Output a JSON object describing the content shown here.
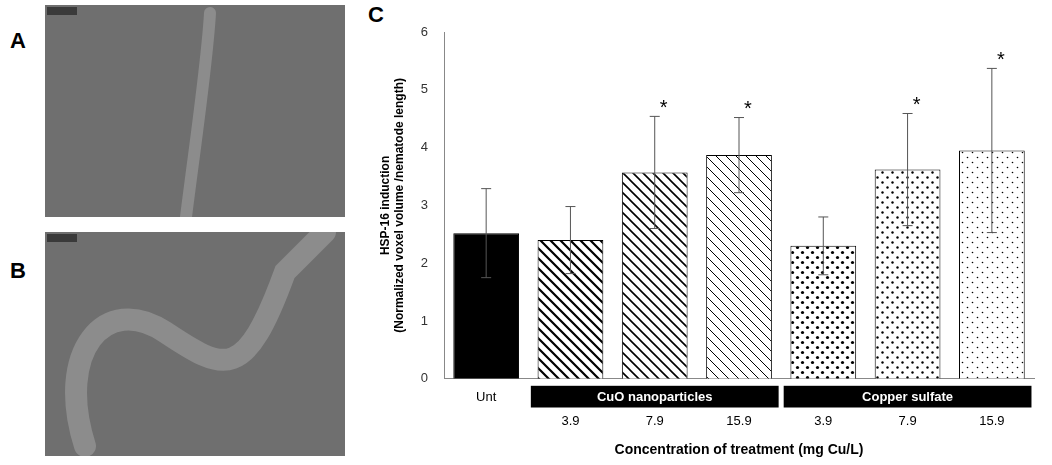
{
  "panels": [
    {
      "letter": "A"
    },
    {
      "letter": "B"
    }
  ],
  "chart_data": {
    "letter": "C",
    "type": "bar",
    "categories": [
      "Unt",
      "3.9",
      "7.9",
      "15.9",
      "3.9",
      "7.9",
      "15.9"
    ],
    "groups": [
      null,
      "CuO nanoparticles",
      "CuO nanoparticles",
      "CuO nanoparticles",
      "Copper sulfate",
      "Copper sulfate",
      "Copper sulfate"
    ],
    "values": [
      2.52,
      2.4,
      3.57,
      3.87,
      2.3,
      3.62,
      3.95
    ],
    "errors": [
      0.77,
      0.58,
      0.97,
      0.65,
      0.5,
      0.97,
      1.42
    ],
    "significance": [
      null,
      null,
      "*",
      "*",
      null,
      "*",
      "*"
    ],
    "colors": [
      "#000000",
      "#000000",
      "#000000",
      "#000000",
      "#000000",
      "#000000",
      "#000000"
    ],
    "x_label": "Concentration of treatment (mg Cu/L)",
    "y_label": "HSP-16 induction (Normalized voxel volume /nematode length)",
    "ylim": [
      0,
      6
    ],
    "yticks": [
      0,
      1,
      2,
      3,
      4,
      5,
      6
    ],
    "grid": false
  }
}
